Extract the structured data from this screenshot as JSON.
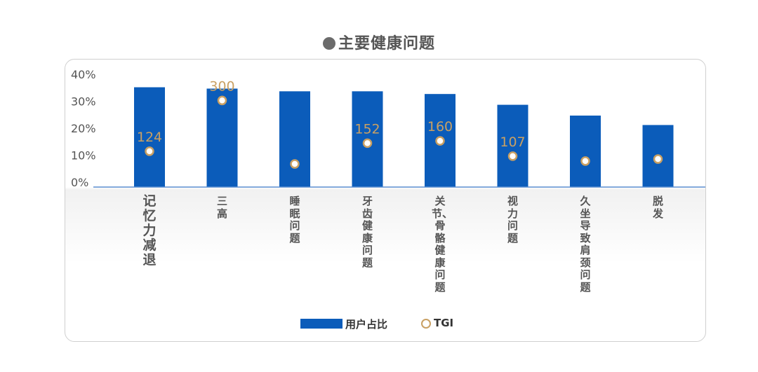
{
  "header": {
    "title": "主要健康问题"
  },
  "colors": {
    "bar": "#0b5cba",
    "tgi": "#c9a063",
    "axis": "#5b8fd1"
  },
  "chart_data": {
    "type": "bar",
    "title": "主要健康问题",
    "categories": [
      "记忆力减退",
      "三高",
      "睡眠问题",
      "牙齿健康问题",
      "关节、骨骼健康问题",
      "视力问题",
      "久坐导致肩颈问题",
      "脱发"
    ],
    "series": [
      {
        "name": "用户占比",
        "type": "bar",
        "values": [
          0.37,
          0.365,
          0.355,
          0.355,
          0.345,
          0.305,
          0.265,
          0.23
        ]
      },
      {
        "name": "TGI",
        "type": "scatter",
        "values": [
          124,
          300,
          80,
          152,
          160,
          107,
          90,
          97
        ],
        "labels": [
          "124",
          "300",
          "",
          "152",
          "160",
          "107",
          "",
          ""
        ]
      }
    ],
    "y_ticks": [
      "40%",
      "30%",
      "20%",
      "10%",
      "0%"
    ],
    "ylim": [
      0,
      0.4
    ],
    "legend": [
      "用户占比",
      "TGI"
    ],
    "legend_position": "bottom"
  }
}
